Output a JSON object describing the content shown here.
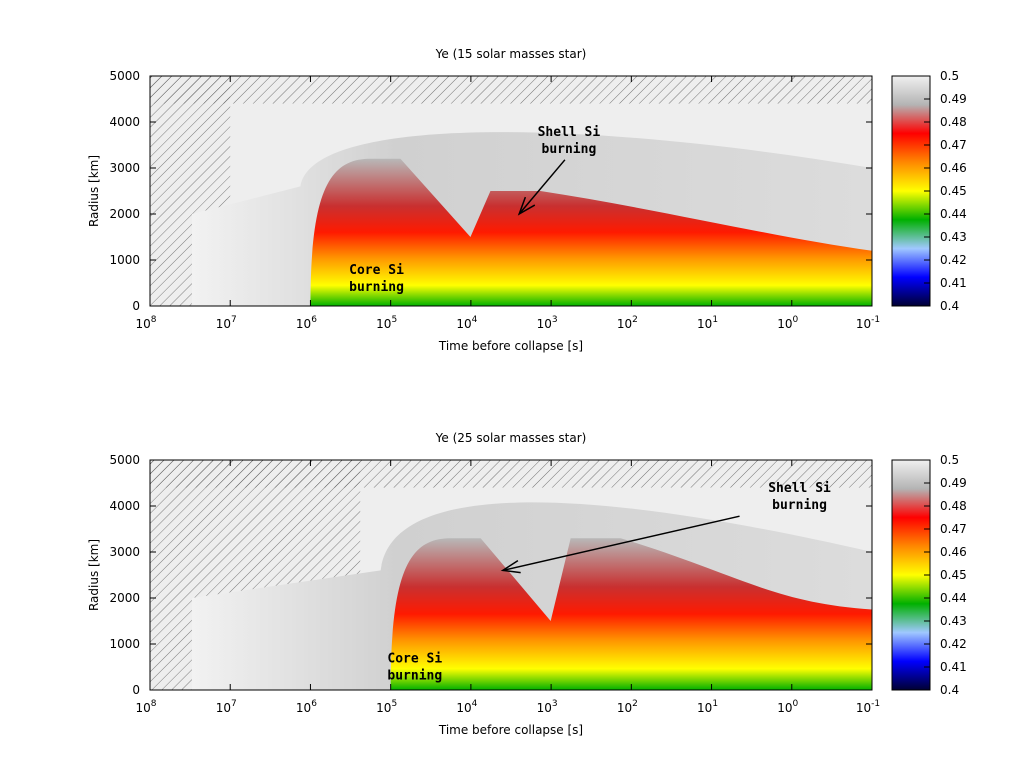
{
  "chart_data": [
    {
      "type": "heatmap",
      "title": "Ye (15 solar masses star)",
      "xlabel": "Time before collapse [s]",
      "ylabel": "Radius [km]",
      "x_scale": "log",
      "x_reversed": true,
      "xlim": [
        100000000,
        0.1
      ],
      "x_ticks": [
        {
          "base": "10",
          "exp": "8"
        },
        {
          "base": "10",
          "exp": "7"
        },
        {
          "base": "10",
          "exp": "6"
        },
        {
          "base": "10",
          "exp": "5"
        },
        {
          "base": "10",
          "exp": "4"
        },
        {
          "base": "10",
          "exp": "3"
        },
        {
          "base": "10",
          "exp": "2"
        },
        {
          "base": "10",
          "exp": "1"
        },
        {
          "base": "10",
          "exp": "0"
        },
        {
          "base": "10",
          "exp": "-1"
        }
      ],
      "ylim": [
        0,
        5000
      ],
      "y_ticks": [
        "0",
        "1000",
        "2000",
        "3000",
        "4000",
        "5000"
      ],
      "colorbar": {
        "range": [
          0.4,
          0.5
        ],
        "ticks": [
          "0.4",
          "0.41",
          "0.42",
          "0.43",
          "0.44",
          "0.45",
          "0.46",
          "0.47",
          "0.48",
          "0.49",
          "0.5"
        ]
      },
      "regions": [
        {
          "name": "convective zones",
          "style": "hatched"
        },
        {
          "name": "core",
          "time_s": [
            1000000,
            0.1
          ],
          "radius_km": [
            0,
            3200
          ]
        }
      ],
      "annotations": [
        {
          "lines": [
            "Core Si",
            "burning"
          ],
          "time_s": 150000,
          "radius_km": 700
        },
        {
          "lines": [
            "Shell Si",
            "burning"
          ],
          "time_s": 600,
          "radius_km": 3700,
          "arrow_to": {
            "time_s": 2500,
            "radius_km": 2000
          }
        }
      ]
    },
    {
      "type": "heatmap",
      "title": "Ye (25 solar masses star)",
      "xlabel": "Time before collapse [s]",
      "ylabel": "Radius [km]",
      "x_scale": "log",
      "x_reversed": true,
      "xlim": [
        100000000,
        0.1
      ],
      "x_ticks": [
        {
          "base": "10",
          "exp": "8"
        },
        {
          "base": "10",
          "exp": "7"
        },
        {
          "base": "10",
          "exp": "6"
        },
        {
          "base": "10",
          "exp": "5"
        },
        {
          "base": "10",
          "exp": "4"
        },
        {
          "base": "10",
          "exp": "3"
        },
        {
          "base": "10",
          "exp": "2"
        },
        {
          "base": "10",
          "exp": "1"
        },
        {
          "base": "10",
          "exp": "0"
        },
        {
          "base": "10",
          "exp": "-1"
        }
      ],
      "ylim": [
        0,
        5000
      ],
      "y_ticks": [
        "0",
        "1000",
        "2000",
        "3000",
        "4000",
        "5000"
      ],
      "colorbar": {
        "range": [
          0.4,
          0.5
        ],
        "ticks": [
          "0.4",
          "0.41",
          "0.42",
          "0.43",
          "0.44",
          "0.45",
          "0.46",
          "0.47",
          "0.48",
          "0.49",
          "0.5"
        ]
      },
      "regions": [
        {
          "name": "convective zones",
          "style": "hatched"
        },
        {
          "name": "core",
          "time_s": [
            100000,
            0.1
          ],
          "radius_km": [
            0,
            3300
          ]
        }
      ],
      "annotations": [
        {
          "lines": [
            "Core Si",
            "burning"
          ],
          "time_s": 50000,
          "radius_km": 600
        },
        {
          "lines": [
            "Shell Si",
            "burning"
          ],
          "time_s": 0.8,
          "radius_km": 4300,
          "arrow_to": {
            "time_s": 4000,
            "radius_km": 2600
          }
        }
      ]
    }
  ],
  "colors": {
    "scale": [
      "#000033",
      "#0000ff",
      "#a0c8ff",
      "#00b000",
      "#ffff00",
      "#ff8800",
      "#ff0000",
      "#b4b4b4",
      "#f0f0f0"
    ],
    "hatch": "#555555",
    "envelope": "#eeeeee"
  }
}
